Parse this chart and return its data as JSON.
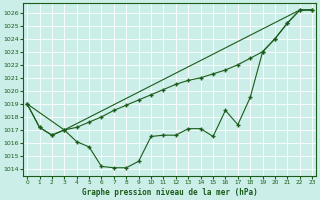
{
  "background_color": "#cceee8",
  "grid_color": "#aaddcc",
  "line_color": "#1a5c1a",
  "title": "Graphe pression niveau de la mer (hPa)",
  "xlim": [
    -0.3,
    23.3
  ],
  "ylim": [
    1013.5,
    1026.7
  ],
  "yticks": [
    1014,
    1015,
    1016,
    1017,
    1018,
    1019,
    1020,
    1021,
    1022,
    1023,
    1024,
    1025,
    1026
  ],
  "xticks": [
    0,
    1,
    2,
    3,
    4,
    5,
    6,
    7,
    8,
    9,
    10,
    11,
    12,
    13,
    14,
    15,
    16,
    17,
    18,
    19,
    20,
    21,
    22,
    23
  ],
  "line1_x": [
    0,
    1,
    2,
    3,
    4,
    5,
    6,
    7,
    8,
    9,
    10,
    11,
    12,
    13,
    14,
    15,
    16,
    17,
    18,
    19,
    20,
    21,
    22,
    23
  ],
  "line1_y": [
    1019.0,
    1017.2,
    1016.6,
    1017.0,
    1016.1,
    1015.7,
    1014.2,
    1014.1,
    1014.1,
    1014.6,
    1016.5,
    1016.6,
    1016.6,
    1017.1,
    1017.1,
    1016.5,
    1018.5,
    1017.4,
    1019.5,
    1023.0,
    1024.0,
    1025.2,
    1026.2,
    1026.2
  ],
  "line2_x": [
    0,
    3,
    22,
    23
  ],
  "line2_y": [
    1019.0,
    1017.0,
    1026.2,
    1026.2
  ],
  "line3_x": [
    0,
    1,
    2,
    3,
    4,
    5,
    6,
    7,
    8,
    9,
    10,
    11,
    12,
    13,
    14,
    15,
    16,
    17,
    18,
    19,
    20,
    21,
    22,
    23
  ],
  "line3_y": [
    1019.0,
    1017.2,
    1016.6,
    1017.0,
    1017.2,
    1017.6,
    1018.0,
    1018.5,
    1018.9,
    1019.3,
    1019.7,
    1020.1,
    1020.5,
    1020.8,
    1021.0,
    1021.3,
    1021.6,
    1022.0,
    1022.5,
    1023.0,
    1024.0,
    1025.2,
    1026.2,
    1026.2
  ]
}
